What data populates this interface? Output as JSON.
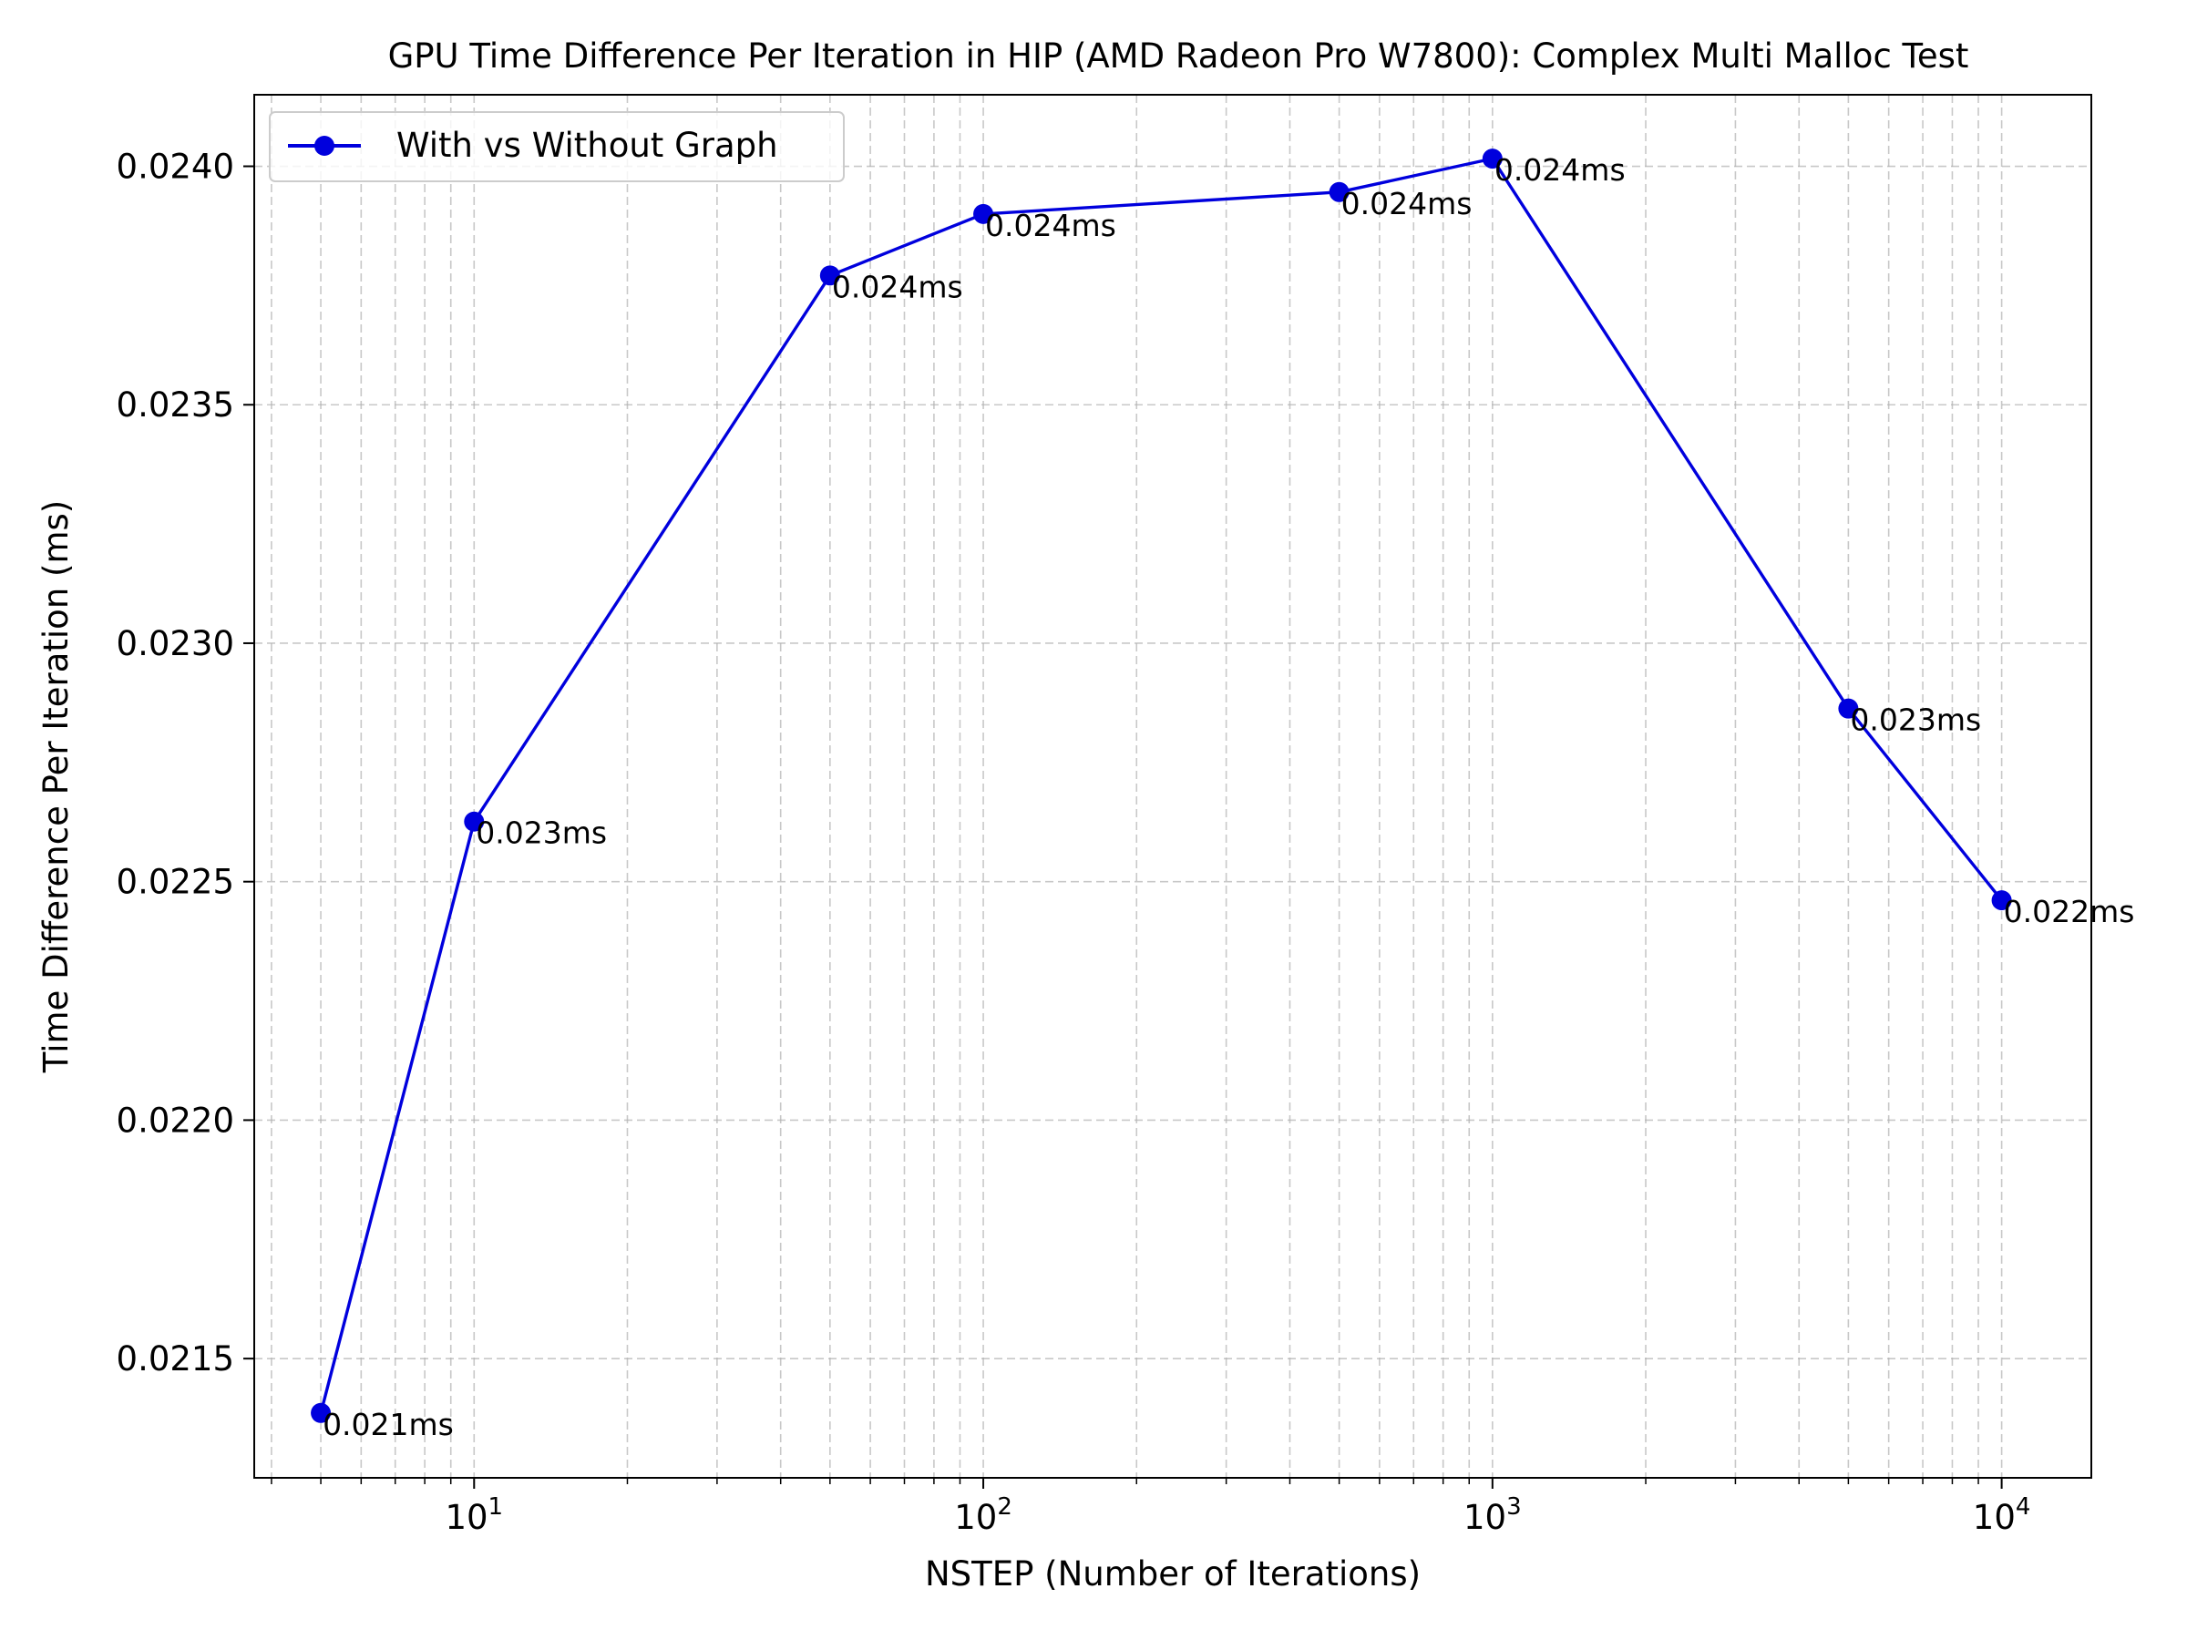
{
  "chart_data": {
    "type": "line",
    "title": "GPU Time Difference Per Iteration in HIP (AMD Radeon Pro W7800): Complex Multi Malloc Test",
    "xlabel": "NSTEP (Number of Iterations)",
    "ylabel": "Time Difference Per Iteration (ms)",
    "xscale": "log",
    "xlim": [
      3.7,
      15000
    ],
    "ylim": [
      0.02125,
      0.02415
    ],
    "grid": true,
    "legend_position": "upper-left",
    "x_ticks": [
      {
        "base": "10",
        "exp": "1",
        "value": 10
      },
      {
        "base": "10",
        "exp": "2",
        "value": 100
      },
      {
        "base": "10",
        "exp": "3",
        "value": 1000
      },
      {
        "base": "10",
        "exp": "4",
        "value": 10000
      }
    ],
    "y_ticks": [
      {
        "label": "0.0215",
        "value": 0.0215
      },
      {
        "label": "0.0220",
        "value": 0.022
      },
      {
        "label": "0.0225",
        "value": 0.0225
      },
      {
        "label": "0.0230",
        "value": 0.023
      },
      {
        "label": "0.0235",
        "value": 0.0235
      },
      {
        "label": "0.0240",
        "value": 0.024
      }
    ],
    "series": [
      {
        "name": "With vs Without Graph",
        "color": "#0000dd",
        "marker": "circle",
        "x": [
          5,
          10,
          50,
          100,
          500,
          1000,
          5000,
          10000
        ],
        "y": [
          0.021386,
          0.022626,
          0.023771,
          0.0239,
          0.023946,
          0.024016,
          0.022863,
          0.022461
        ],
        "point_labels": [
          "0.021ms",
          "0.023ms",
          "0.024ms",
          "0.024ms",
          "0.024ms",
          "0.024ms",
          "0.023ms",
          "0.022ms"
        ]
      }
    ]
  }
}
